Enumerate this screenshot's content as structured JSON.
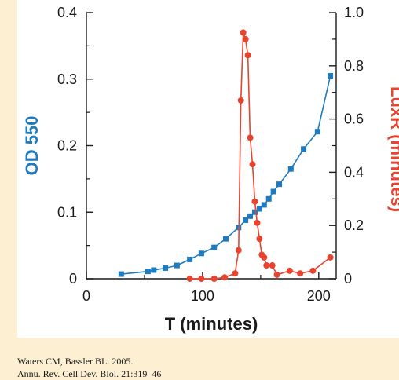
{
  "citation": {
    "line1": "Waters CM, Bassler BL. 2005.",
    "line2": "Annu. Rev. Cell Dev. Biol. 21:319–46"
  },
  "chart_data": {
    "type": "line",
    "xlabel": "T (minutes)",
    "ylabel": "OD 550",
    "y2label": "LuxR (minutes)",
    "xlim": [
      0,
      215
    ],
    "ylim": [
      0,
      0.4
    ],
    "y2lim": [
      0,
      1.0
    ],
    "x_ticks": [
      "0",
      "100",
      "200"
    ],
    "y_ticks": [
      "0",
      "0.1",
      "0.2",
      "0.3",
      "0.4"
    ],
    "y2_ticks": [
      "0",
      "0.2",
      "0.4",
      "0.6",
      "0.8",
      "1.0"
    ],
    "grid": false,
    "colors": {
      "od": "#1f7bbf",
      "lux": "#e8432f"
    },
    "series": [
      {
        "marker": "square",
        "axis": "left",
        "x": [
          30,
          53,
          58,
          68,
          78,
          89,
          99,
          110,
          120,
          131,
          137,
          141,
          145,
          149,
          153,
          157,
          161,
          166,
          176,
          187,
          199,
          210
        ],
        "y": [
          0.007,
          0.011,
          0.013,
          0.016,
          0.02,
          0.029,
          0.038,
          0.047,
          0.06,
          0.077,
          0.088,
          0.094,
          0.1,
          0.105,
          0.111,
          0.12,
          0.131,
          0.142,
          0.165,
          0.195,
          0.221,
          0.305
        ]
      },
      {
        "marker": "circle",
        "axis": "right",
        "x": [
          89,
          99,
          110,
          119,
          128,
          131,
          133,
          135,
          137,
          139,
          141,
          143,
          145,
          147,
          149,
          151,
          153,
          155,
          160,
          164,
          175,
          184,
          195,
          210
        ],
        "y": [
          0.0,
          0.0,
          0.0,
          0.005,
          0.02,
          0.107,
          0.67,
          0.925,
          0.9,
          0.84,
          0.53,
          0.43,
          0.29,
          0.21,
          0.15,
          0.09,
          0.08,
          0.05,
          0.05,
          0.015,
          0.03,
          0.02,
          0.03,
          0.08
        ]
      }
    ]
  }
}
